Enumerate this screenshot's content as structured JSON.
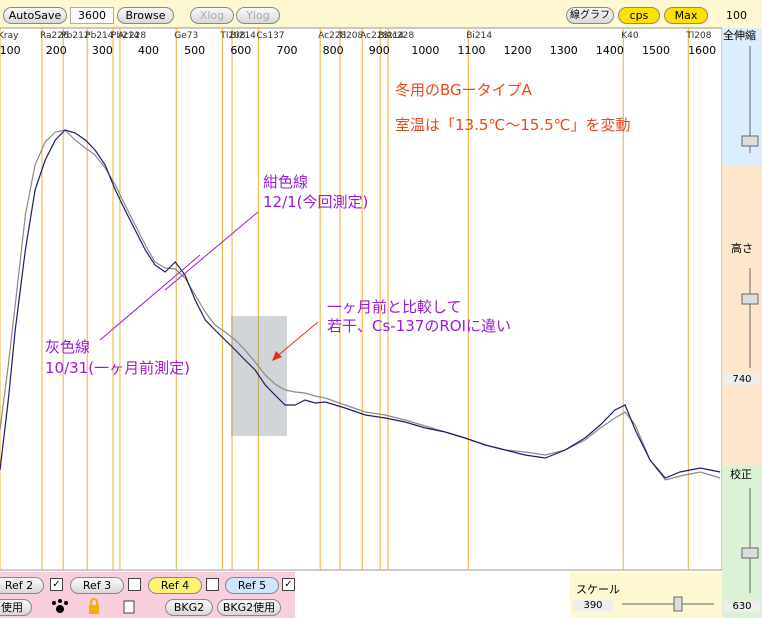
{
  "toolbar": {
    "autosave": "AutoSave",
    "time": "3600",
    "browse": "Browse",
    "xlog": "Xlog",
    "ylog": "Ylog",
    "graph": "線グラフ",
    "cps": "cps",
    "max": "Max",
    "max_value": "100"
  },
  "chart_data": {
    "type": "line",
    "x": [
      78,
      96,
      111,
      133,
      154,
      176,
      198,
      219,
      241,
      263,
      284,
      306,
      328,
      349,
      371,
      393,
      414,
      436,
      458,
      479,
      501,
      523,
      544,
      566,
      588,
      609,
      631,
      653,
      674,
      696,
      718,
      739,
      761,
      783,
      826,
      870,
      913,
      956,
      1000,
      1043,
      1086,
      1130,
      1173,
      1216,
      1260,
      1303,
      1346,
      1379,
      1411,
      1433,
      1455,
      1487,
      1520,
      1552,
      1596,
      1639
    ],
    "series": [
      {
        "color": "#1c1c6a",
        "values": [
          100,
          170,
          240,
          320,
          380,
          410,
          430,
          440,
          437,
          430,
          420,
          405,
          380,
          360,
          340,
          320,
          305,
          298,
          308,
          295,
          270,
          250,
          240,
          230,
          220,
          210,
          200,
          185,
          175,
          165,
          165,
          170,
          167,
          168,
          162,
          155,
          152,
          148,
          142,
          138,
          132,
          125,
          120,
          115,
          112,
          120,
          132,
          145,
          160,
          165,
          140,
          110,
          92,
          98,
          102,
          98
        ]
      },
      {
        "color": "#8a8a8a",
        "values": [
          140,
          205,
          265,
          355,
          405,
          428,
          438,
          440,
          430,
          422,
          415,
          402,
          385,
          365,
          345,
          325,
          308,
          302,
          301,
          292,
          275,
          258,
          245,
          238,
          230,
          220,
          208,
          195,
          186,
          180,
          178,
          177,
          174,
          172,
          165,
          158,
          155,
          150,
          144,
          138,
          132,
          125,
          120,
          118,
          115,
          120,
          130,
          142,
          152,
          158,
          145,
          110,
          90,
          94,
          98,
          92
        ]
      }
    ],
    "xlim": [
      78,
      1643
    ],
    "ylim": [
      0,
      542
    ],
    "xticks": [
      100,
      200,
      300,
      400,
      500,
      600,
      700,
      800,
      900,
      1000,
      1100,
      1200,
      1300,
      1400,
      1500,
      1600
    ],
    "peaks": [
      {
        "name": "Kray",
        "channel": 78
      },
      {
        "name": "Ra226",
        "channel": 169
      },
      {
        "name": "Pb212",
        "channel": 215
      },
      {
        "name": "Pb214",
        "channel": 267
      },
      {
        "name": "Pb214",
        "channel": 323
      },
      {
        "name": "Ac228",
        "channel": 338
      },
      {
        "name": "Ge73",
        "channel": 460
      },
      {
        "name": "Tl208",
        "channel": 560
      },
      {
        "name": "Bi214",
        "channel": 581
      },
      {
        "name": "Cs137",
        "channel": 638
      },
      {
        "name": "Ac228",
        "channel": 772
      },
      {
        "name": "Tl208",
        "channel": 815
      },
      {
        "name": "Ac228",
        "channel": 863
      },
      {
        "name": "Bi214",
        "channel": 902
      },
      {
        "name": "Ac228",
        "channel": 919
      },
      {
        "name": "Bi214",
        "channel": 1093
      },
      {
        "name": "K40",
        "channel": 1429
      },
      {
        "name": "Tl208",
        "channel": 1570
      }
    ],
    "annotations": [
      "冬用のBGータイプA",
      "室温は「13.5℃～15.5℃」を変動",
      "紺色線",
      "12/1(今回測定)",
      "灰色線",
      "10/31(一ヶ月前測定)",
      "一ヶ月前と比較して",
      "若干、Cs-137のROIに違い"
    ]
  },
  "side_panel": {
    "zoom": "全伸縮",
    "height": "高さ",
    "height_value": "740",
    "calib": "校正",
    "calib_value": "630"
  },
  "bottom_panel": {
    "ref2": "Ref 2",
    "ref3": "Ref 3",
    "ref4": "Ref 4",
    "ref5": "Ref 5",
    "use": "使用",
    "bkg2": "BKG2",
    "bkg2_use": "BKG2使用",
    "scale": "スケール",
    "scale_value": "390"
  }
}
